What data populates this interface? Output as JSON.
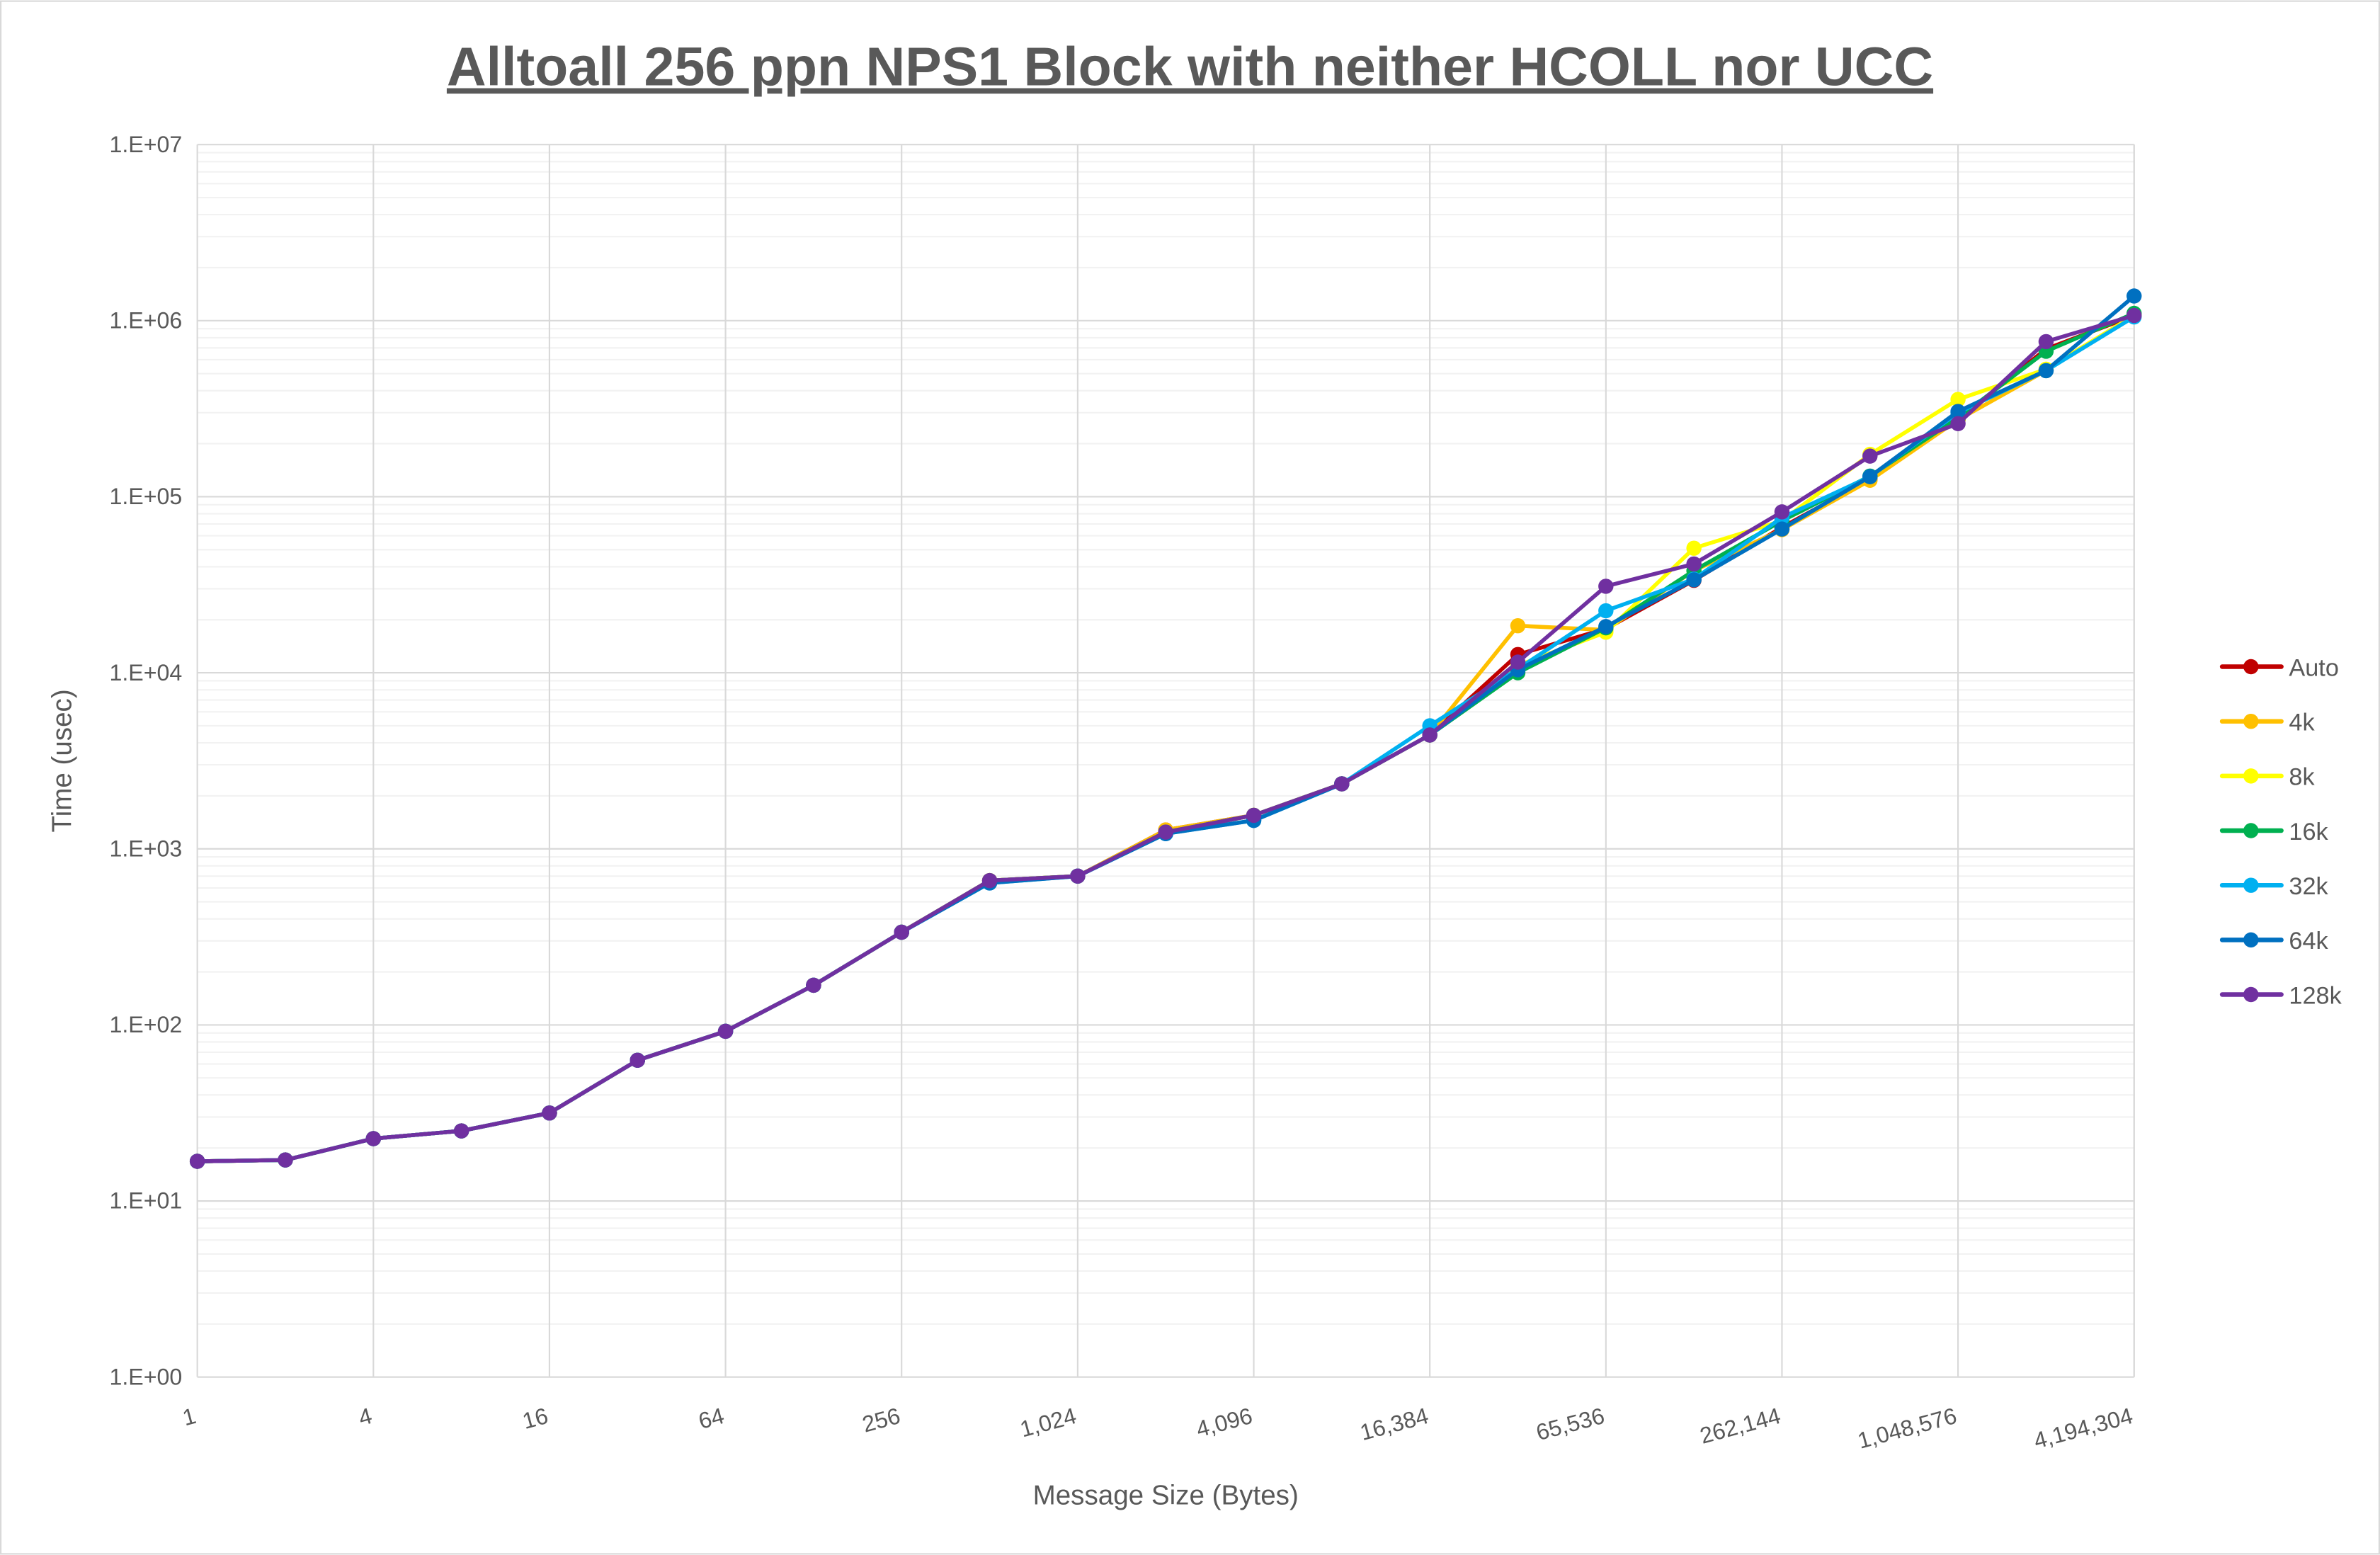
{
  "chart_data": {
    "type": "line",
    "title": "Alltoall 256 ppn NPS1 Block with neither HCOLL nor UCC",
    "xlabel": "Message Size (Bytes)",
    "ylabel": "Time (usec)",
    "xscale": "log2",
    "yscale": "log10",
    "xlim": [
      1,
      4194304
    ],
    "ylim": [
      1,
      10000000
    ],
    "x": [
      1,
      2,
      4,
      8,
      16,
      32,
      64,
      128,
      256,
      512,
      1024,
      2048,
      4096,
      8192,
      16384,
      32768,
      65536,
      131072,
      262144,
      524288,
      1048576,
      2097152,
      4194304
    ],
    "x_tick_labels": [
      "1",
      "4",
      "16",
      "64",
      "256",
      "1,024",
      "4,096",
      "16,384",
      "65,536",
      "262,144",
      "1,048,576",
      "4,194,304"
    ],
    "y_tick_labels": [
      "1.E+00",
      "1.E+01",
      "1.E+02",
      "1.E+03",
      "1.E+04",
      "1.E+05",
      "1.E+06",
      "1.E+07"
    ],
    "grid": true,
    "legend_position": "right",
    "series": [
      {
        "name": "Auto",
        "color": "#c00000",
        "values": [
          16.8,
          17.1,
          22.6,
          25,
          31.6,
          63,
          92,
          168,
          336,
          660,
          700,
          1280,
          1550,
          2340,
          4430,
          12700,
          17800,
          33500,
          67000,
          126000,
          275000,
          690000,
          1070000
        ]
      },
      {
        "name": "4k",
        "color": "#ffc000",
        "values": [
          16.8,
          17.1,
          22.6,
          25,
          31.6,
          63,
          92,
          168,
          336,
          660,
          700,
          1280,
          1550,
          2340,
          4430,
          18500,
          17500,
          38000,
          65000,
          124000,
          273000,
          520000,
          1070000
        ]
      },
      {
        "name": "8k",
        "color": "#ffff00",
        "values": [
          16.8,
          17.1,
          22.6,
          25,
          31.6,
          63,
          92,
          168,
          336,
          660,
          700,
          1245,
          1550,
          2340,
          4430,
          11000,
          17000,
          51000,
          73000,
          174000,
          357000,
          530000,
          1070000
        ]
      },
      {
        "name": "16k",
        "color": "#00b050",
        "values": [
          16.8,
          17.1,
          22.6,
          25,
          31.6,
          63,
          92,
          168,
          336,
          660,
          700,
          1245,
          1550,
          2340,
          4430,
          10000,
          18000,
          38000,
          73000,
          131000,
          280000,
          670000,
          1100000
        ]
      },
      {
        "name": "32k",
        "color": "#00b0f0",
        "values": [
          16.8,
          17.1,
          22.6,
          25,
          31.6,
          63,
          92,
          168,
          336,
          640,
          700,
          1220,
          1450,
          2340,
          5000,
          10500,
          22500,
          34000,
          76000,
          130000,
          300000,
          520000,
          1050000
        ]
      },
      {
        "name": "64k",
        "color": "#0070c0",
        "values": [
          16.8,
          17.1,
          22.6,
          25,
          31.6,
          63,
          92,
          168,
          336,
          640,
          700,
          1220,
          1450,
          2340,
          4430,
          10400,
          18300,
          33700,
          65500,
          130000,
          305000,
          520000,
          1380000
        ]
      },
      {
        "name": "128k",
        "color": "#7030a0",
        "values": [
          16.8,
          17.1,
          22.6,
          25,
          31.6,
          63,
          92,
          168,
          336,
          660,
          700,
          1245,
          1550,
          2340,
          4430,
          11500,
          31000,
          41500,
          82000,
          170000,
          260000,
          760000,
          1070000
        ]
      }
    ]
  }
}
